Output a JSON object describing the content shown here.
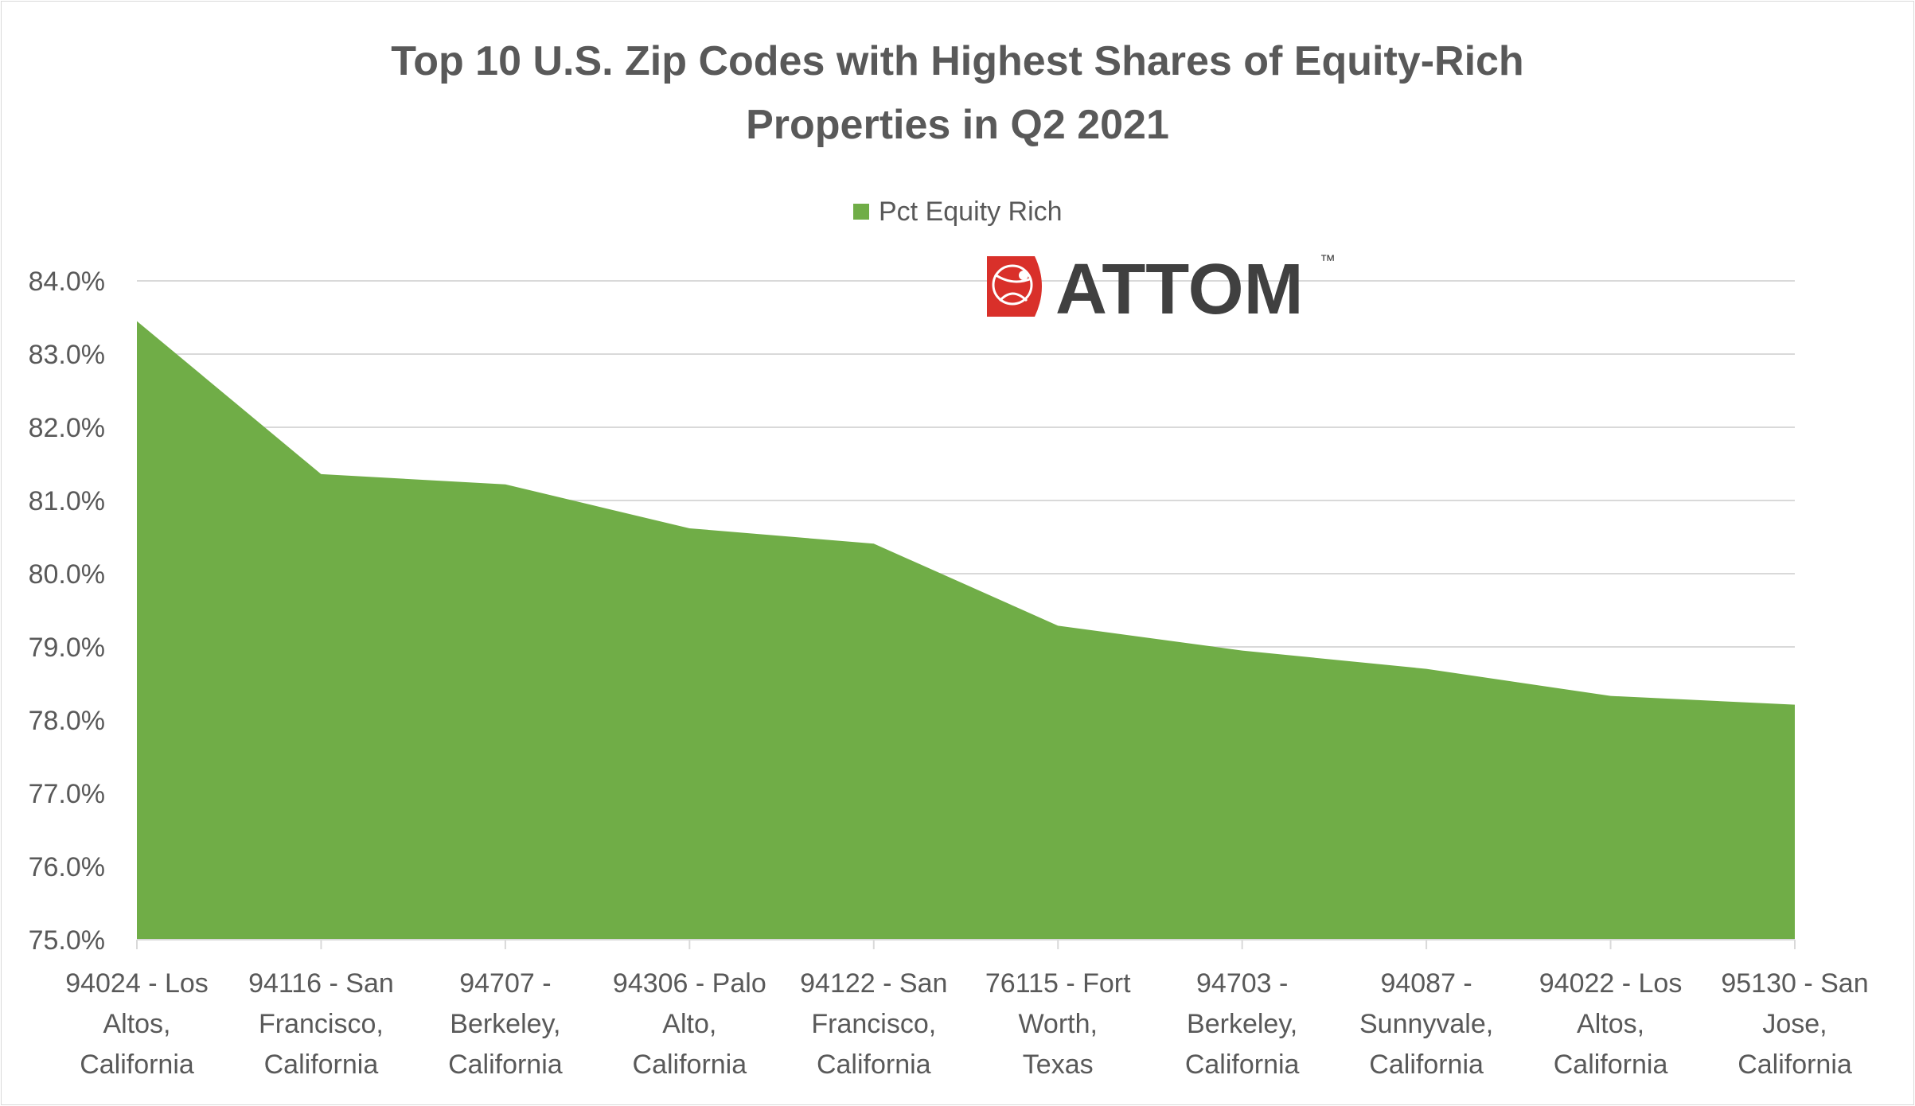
{
  "chart_data": {
    "type": "area",
    "title_lines": [
      "Top 10 U.S. Zip Codes with Highest Shares of Equity-Rich",
      "Properties in Q2 2021"
    ],
    "legend": {
      "position": "top",
      "entries": [
        "Pct Equity Rich"
      ]
    },
    "logo": {
      "text": "ATTOM",
      "trademark": "™"
    },
    "categories": [
      [
        "94024 - Los",
        "Altos,",
        "California"
      ],
      [
        "94116 - San",
        "Francisco,",
        "California"
      ],
      [
        "94707 -",
        "Berkeley,",
        "California"
      ],
      [
        "94306 - Palo",
        "Alto,",
        "California"
      ],
      [
        "94122 - San",
        "Francisco,",
        "California"
      ],
      [
        "76115 - Fort",
        "Worth,",
        "Texas"
      ],
      [
        "94703 -",
        "Berkeley,",
        "California"
      ],
      [
        "94087 -",
        "Sunnyvale,",
        "California"
      ],
      [
        "94022 - Los",
        "Altos,",
        "California"
      ],
      [
        "95130 - San",
        "Jose,",
        "California"
      ]
    ],
    "series": [
      {
        "name": "Pct Equity Rich",
        "color": "#70AD47",
        "values": [
          83.45,
          81.36,
          81.22,
          80.62,
          80.41,
          79.29,
          78.95,
          78.7,
          78.33,
          78.21
        ]
      }
    ],
    "ylim": [
      75.0,
      84.0
    ],
    "yticks": [
      "75.0%",
      "76.0%",
      "77.0%",
      "78.0%",
      "79.0%",
      "80.0%",
      "81.0%",
      "82.0%",
      "83.0%",
      "84.0%"
    ],
    "grid": true,
    "colors": {
      "grid": "#d9d9d9",
      "text": "#595959",
      "logo_red": "#e8412c",
      "logo_gray": "#404040"
    }
  }
}
